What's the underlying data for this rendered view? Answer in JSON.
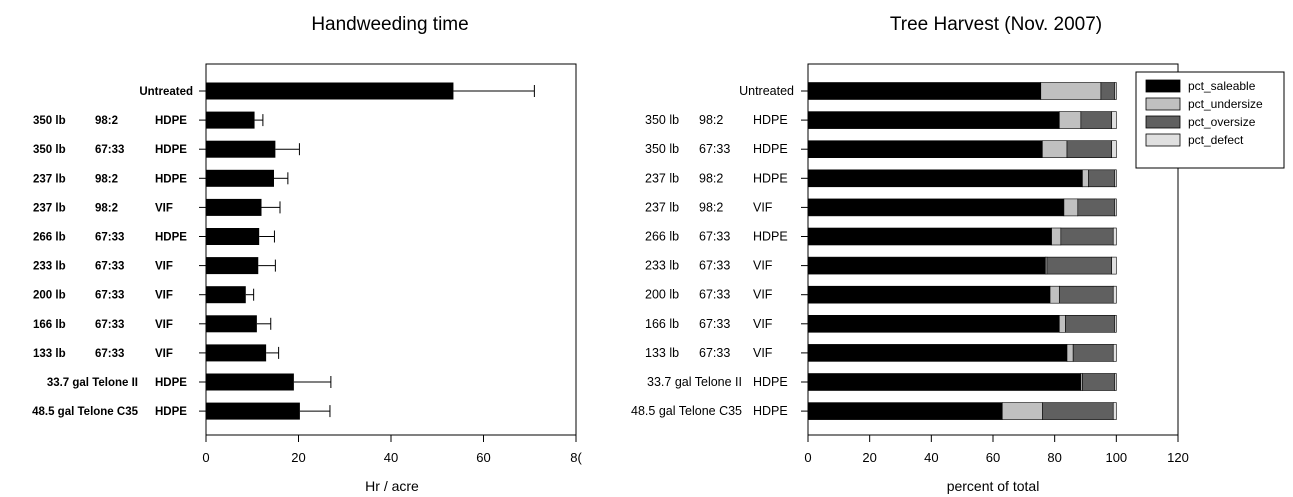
{
  "chart_data": [
    {
      "type": "bar",
      "orientation": "horizontal",
      "title": "Handweeding time",
      "xlabel": "Hr / acre",
      "ylabel": "",
      "xlim": [
        0,
        80
      ],
      "xticks": [
        "0",
        "20",
        "40",
        "60",
        "8("
      ],
      "categories": [
        [
          "Untreated",
          "",
          ""
        ],
        [
          "350 lb",
          "98:2",
          "HDPE"
        ],
        [
          "350 lb",
          "67:33",
          "HDPE"
        ],
        [
          "237 lb",
          "98:2",
          "HDPE"
        ],
        [
          "237 lb",
          "98:2",
          "VIF"
        ],
        [
          "266 lb",
          "67:33",
          "HDPE"
        ],
        [
          "233 lb",
          "67:33",
          "VIF"
        ],
        [
          "200 lb",
          "67:33",
          "VIF"
        ],
        [
          "166 lb",
          "67:33",
          "VIF"
        ],
        [
          "133 lb",
          "67:33",
          "VIF"
        ],
        [
          "33.7 gal Telone II",
          "",
          "HDPE"
        ],
        [
          "48.5 gal Telone C35",
          "",
          "HDPE"
        ]
      ],
      "values": [
        53.5,
        10.5,
        15,
        14.7,
        12,
        11.5,
        11.3,
        8.6,
        11,
        13,
        19,
        20.3
      ],
      "errors": [
        17.5,
        1.8,
        5.2,
        3,
        4,
        3.3,
        3.7,
        1.7,
        3,
        2.7,
        8,
        6.5
      ],
      "bar_color": "#000000"
    },
    {
      "type": "bar",
      "orientation": "horizontal",
      "stacked": true,
      "title": "Tree Harvest (Nov. 2007)",
      "xlabel": "percent of total",
      "ylabel": "",
      "xlim": [
        0,
        120
      ],
      "xticks": [
        "0",
        "20",
        "40",
        "60",
        "80",
        "100",
        "120"
      ],
      "legend_position": "top-right",
      "categories": [
        [
          "Untreated",
          "",
          ""
        ],
        [
          "350 lb",
          "98:2",
          "HDPE"
        ],
        [
          "350 lb",
          "67:33",
          "HDPE"
        ],
        [
          "237 lb",
          "98:2",
          "HDPE"
        ],
        [
          "237 lb",
          "98:2",
          "VIF"
        ],
        [
          "266 lb",
          "67:33",
          "HDPE"
        ],
        [
          "233 lb",
          "67:33",
          "VIF"
        ],
        [
          "200 lb",
          "67:33",
          "VIF"
        ],
        [
          "166 lb",
          "67:33",
          "VIF"
        ],
        [
          "133 lb",
          "67:33",
          "VIF"
        ],
        [
          "33.7 gal Telone II",
          "",
          "HDPE"
        ],
        [
          "48.5 gal Telone C35",
          "",
          "HDPE"
        ]
      ],
      "series": [
        {
          "name": "pct_saleable",
          "color": "#000000",
          "values": [
            75.5,
            81.5,
            76,
            89,
            83,
            79,
            77,
            78.5,
            81.5,
            84,
            88.5,
            63
          ]
        },
        {
          "name": "pct_undersize",
          "color": "#c0c0c0",
          "values": [
            19.5,
            7,
            8,
            2,
            4.5,
            3,
            0.5,
            3,
            2,
            2,
            0.5,
            13
          ]
        },
        {
          "name": "pct_oversize",
          "color": "#606060",
          "values": [
            4.5,
            10,
            14.5,
            8.5,
            12,
            17,
            21,
            17.5,
            16,
            13,
            10.5,
            23
          ]
        },
        {
          "name": "pct_defect",
          "color": "#e0e0e0",
          "values": [
            0.5,
            1.5,
            1.5,
            0.5,
            0.5,
            1,
            1.5,
            1,
            0.5,
            1,
            0.5,
            1
          ]
        }
      ]
    }
  ]
}
